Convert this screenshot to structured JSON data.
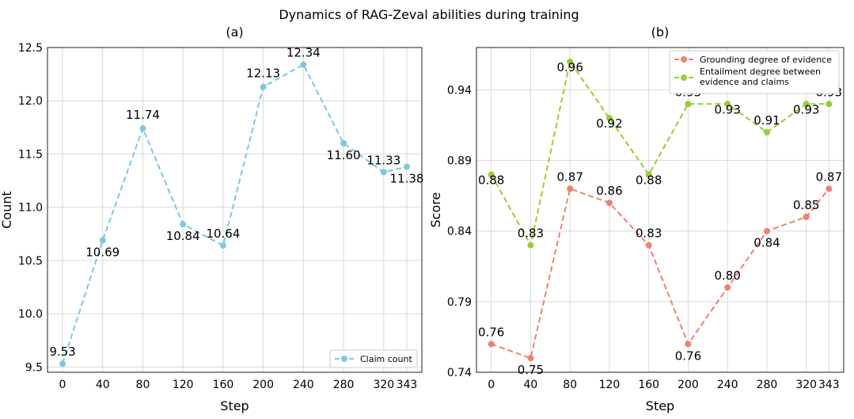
{
  "title": "Dynamics of RAG-Zeval abilities during training",
  "chart_data": [
    {
      "type": "line",
      "panel_label": "(a)",
      "xlabel": "Step",
      "ylabel": "Count",
      "categories": [
        "0",
        "40",
        "80",
        "120",
        "160",
        "200",
        "240",
        "280",
        "320",
        "343"
      ],
      "x": [
        0,
        40,
        80,
        120,
        160,
        200,
        240,
        280,
        320,
        343
      ],
      "xlim": [
        -15,
        358
      ],
      "ylim": [
        9.45,
        12.5
      ],
      "yticks": [
        "9.5",
        "10.0",
        "10.5",
        "11.0",
        "11.5",
        "12.0",
        "12.5"
      ],
      "grid": true,
      "legend_position": "lower-right",
      "series": [
        {
          "name": "Claim count",
          "color": "#7ec8e3",
          "values": [
            9.53,
            10.69,
            11.74,
            10.84,
            10.64,
            12.13,
            12.34,
            11.6,
            11.33,
            11.38
          ],
          "labels": [
            "9.53",
            "10.69",
            "11.74",
            "10.84",
            "10.64",
            "12.13",
            "12.34",
            "11.60",
            "11.33",
            "11.38"
          ]
        }
      ]
    },
    {
      "type": "line",
      "panel_label": "(b)",
      "xlabel": "Step",
      "ylabel": "Score",
      "categories": [
        "0",
        "40",
        "80",
        "120",
        "160",
        "200",
        "240",
        "280",
        "320",
        "343"
      ],
      "x": [
        0,
        40,
        80,
        120,
        160,
        200,
        240,
        280,
        320,
        343
      ],
      "xlim": [
        -15,
        358
      ],
      "ylim": [
        0.74,
        0.97
      ],
      "yticks": [
        "0.74",
        "0.79",
        "0.84",
        "0.89",
        "0.94"
      ],
      "grid": true,
      "legend_position": "upper-right",
      "series": [
        {
          "name": "Grounding degree of evidence",
          "color": "#f08070",
          "label_color": "#000000",
          "values": [
            0.76,
            0.75,
            0.87,
            0.86,
            0.83,
            0.76,
            0.8,
            0.84,
            0.85,
            0.87
          ],
          "labels": [
            "0.76",
            "0.75",
            "0.87",
            "0.86",
            "0.83",
            "0.76",
            "0.80",
            "0.84",
            "0.85",
            "0.87"
          ]
        },
        {
          "name": "Entailment degree between evidence and claims",
          "legend_lines": [
            "Entailment degree between",
            "evidence and claims"
          ],
          "color": "#9acd32",
          "label_color": "#006400",
          "values": [
            0.88,
            0.83,
            0.96,
            0.92,
            0.88,
            0.93,
            0.93,
            0.91,
            0.93,
            0.93
          ],
          "labels": [
            "0.88",
            "0.83",
            "0.96",
            "0.92",
            "0.88",
            "0.93",
            "0.93",
            "0.91",
            "0.93",
            "0.93"
          ]
        }
      ]
    }
  ]
}
